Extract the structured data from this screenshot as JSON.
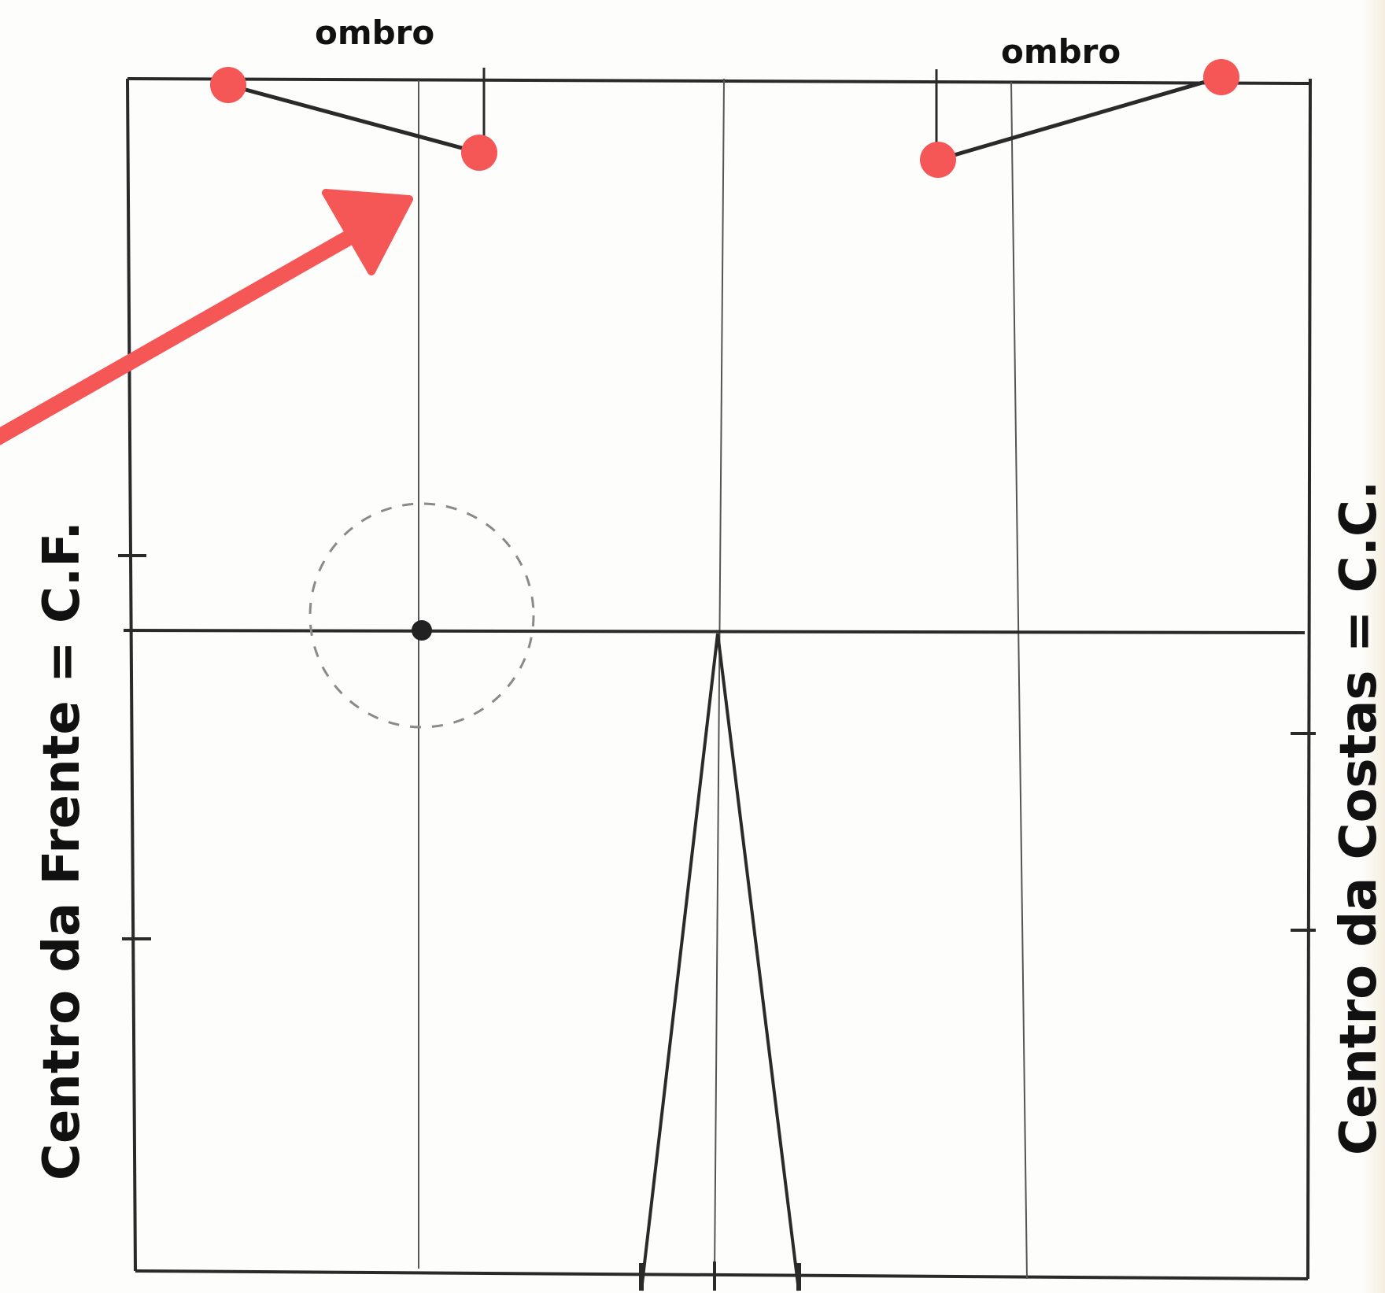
{
  "labels": {
    "shoulder_left": "ombro",
    "shoulder_right": "ombro",
    "center_front": "Centro da Frente = C.F.",
    "center_back": "Centro da Costas = C.C."
  },
  "colors": {
    "line": "#2a2a2a",
    "guide": "#555555",
    "marker": "#f55656",
    "arrow": "#f55656",
    "dashed_circle": "#8a8a8a"
  }
}
